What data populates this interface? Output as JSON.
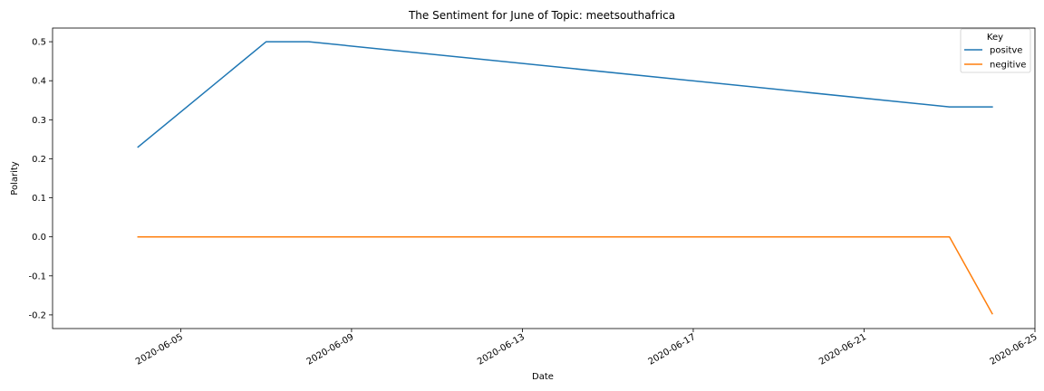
{
  "chart_data": {
    "type": "line",
    "title": "The Sentiment for June of Topic: meetsouthafrica",
    "xlabel": "Date",
    "ylabel": "Polarity",
    "xlim": [
      "2020-06-02",
      "2020-06-25"
    ],
    "ylim": [
      -0.235,
      0.535
    ],
    "x_ticks": [
      "2020-06-05",
      "2020-06-09",
      "2020-06-13",
      "2020-06-17",
      "2020-06-21",
      "2020-06-25"
    ],
    "y_ticks": [
      -0.2,
      -0.1,
      0.0,
      0.1,
      0.2,
      0.3,
      0.4,
      0.5
    ],
    "grid": false,
    "legend": {
      "title": "Key",
      "placement": "top-right"
    },
    "series": [
      {
        "name": "positve",
        "color": "#1f77b4",
        "points": [
          {
            "x": "2020-06-04",
            "y": 0.23
          },
          {
            "x": "2020-06-07",
            "y": 0.5
          },
          {
            "x": "2020-06-08",
            "y": 0.5
          },
          {
            "x": "2020-06-23",
            "y": 0.333
          },
          {
            "x": "2020-06-24",
            "y": 0.333
          }
        ]
      },
      {
        "name": "negitive",
        "color": "#ff7f0e",
        "points": [
          {
            "x": "2020-06-04",
            "y": 0.0
          },
          {
            "x": "2020-06-23",
            "y": 0.0
          },
          {
            "x": "2020-06-24",
            "y": -0.197
          }
        ]
      }
    ]
  }
}
